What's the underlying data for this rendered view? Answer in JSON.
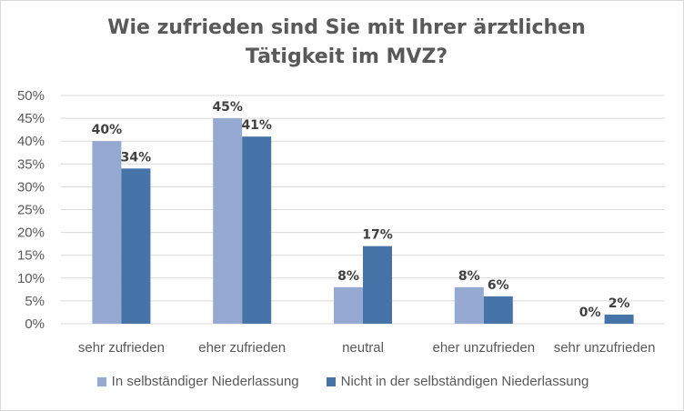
{
  "colors": {
    "series_0": "#95a9d3",
    "series_1": "#4673a8",
    "grid": "#d9d9d9",
    "text": "#595959"
  },
  "chart_data": {
    "type": "bar",
    "title": "Wie zufrieden sind Sie mit Ihrer ärztlichen Tätigkeit im MVZ?",
    "categories": [
      "sehr zufrieden",
      "eher zufrieden",
      "neutral",
      "eher unzufrieden",
      "sehr unzufrieden"
    ],
    "series": [
      {
        "name": "In selbständiger Niederlassung",
        "values": [
          40,
          45,
          8,
          8,
          0
        ],
        "labels": [
          "40%",
          "45%",
          "8%",
          "8%",
          "0%"
        ]
      },
      {
        "name": "Nicht in der selbständigen Niederlassung",
        "values": [
          34,
          41,
          17,
          6,
          2
        ],
        "labels": [
          "34%",
          "41%",
          "17%",
          "6%",
          "2%"
        ]
      }
    ],
    "y_ticks": [
      "0%",
      "5%",
      "10%",
      "15%",
      "20%",
      "25%",
      "30%",
      "35%",
      "40%",
      "45%",
      "50%"
    ],
    "ylim": [
      0,
      50
    ],
    "grid": true,
    "legend_position": "bottom"
  }
}
